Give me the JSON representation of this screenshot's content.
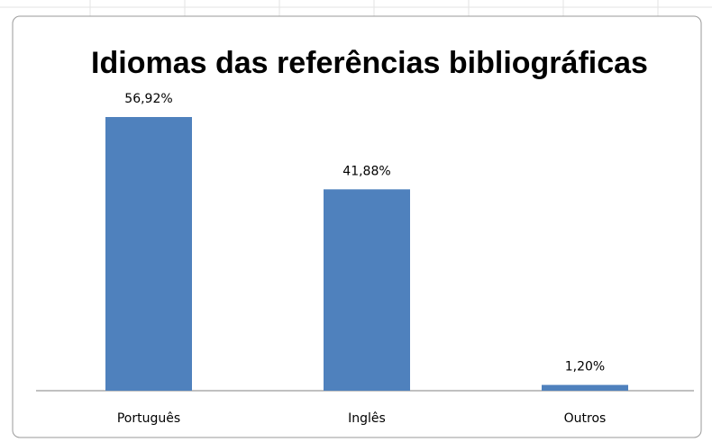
{
  "chart_data": {
    "type": "bar",
    "title": "Idiomas das referências bibliográficas",
    "categories": [
      "Português",
      "Inglês",
      "Outros"
    ],
    "values": [
      56.92,
      41.88,
      1.2
    ],
    "value_labels": [
      "56,92%",
      "41,88%",
      "1,20%"
    ],
    "color": "#4f81bd"
  }
}
